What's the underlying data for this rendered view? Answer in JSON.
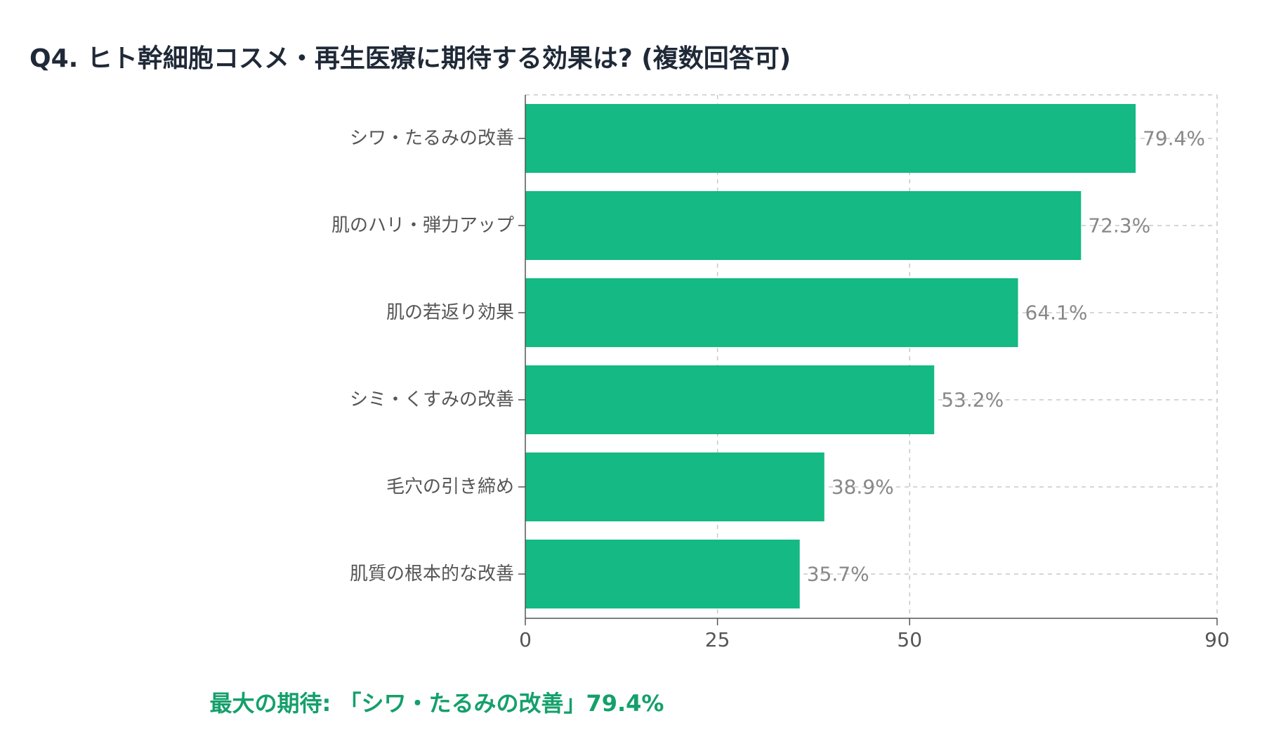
{
  "title": "Q4. ヒト幹細胞コスメ・再生医療に期待する効果は? (複数回答可)",
  "colors": {
    "bar": "#14b983",
    "title": "#1f2937",
    "footer": "#14a06b",
    "grid": "#c8c8c8",
    "axis": "#555555"
  },
  "chart_data": {
    "type": "bar",
    "orientation": "horizontal",
    "title": "Q4. ヒト幹細胞コスメ・再生医療に期待する効果は? (複数回答可)",
    "categories": [
      "シワ・たるみの改善",
      "肌のハリ・弾力アップ",
      "肌の若返り効果",
      "シミ・くすみの改善",
      "毛穴の引き締め",
      "肌質の根本的な改善"
    ],
    "values": [
      79.4,
      72.3,
      64.1,
      53.2,
      38.9,
      35.7
    ],
    "value_labels": [
      "79.4%",
      "72.3%",
      "64.1%",
      "53.2%",
      "38.9%",
      "35.7%"
    ],
    "xlim": [
      0,
      90
    ],
    "xticks": [
      0,
      25,
      50,
      90
    ],
    "xtick_labels": [
      "0",
      "25",
      "50",
      "90"
    ],
    "xlabel": "",
    "ylabel": "",
    "grid": true
  },
  "footer": {
    "note": "最大の期待: 「シワ・たるみの改善」79.4%"
  }
}
